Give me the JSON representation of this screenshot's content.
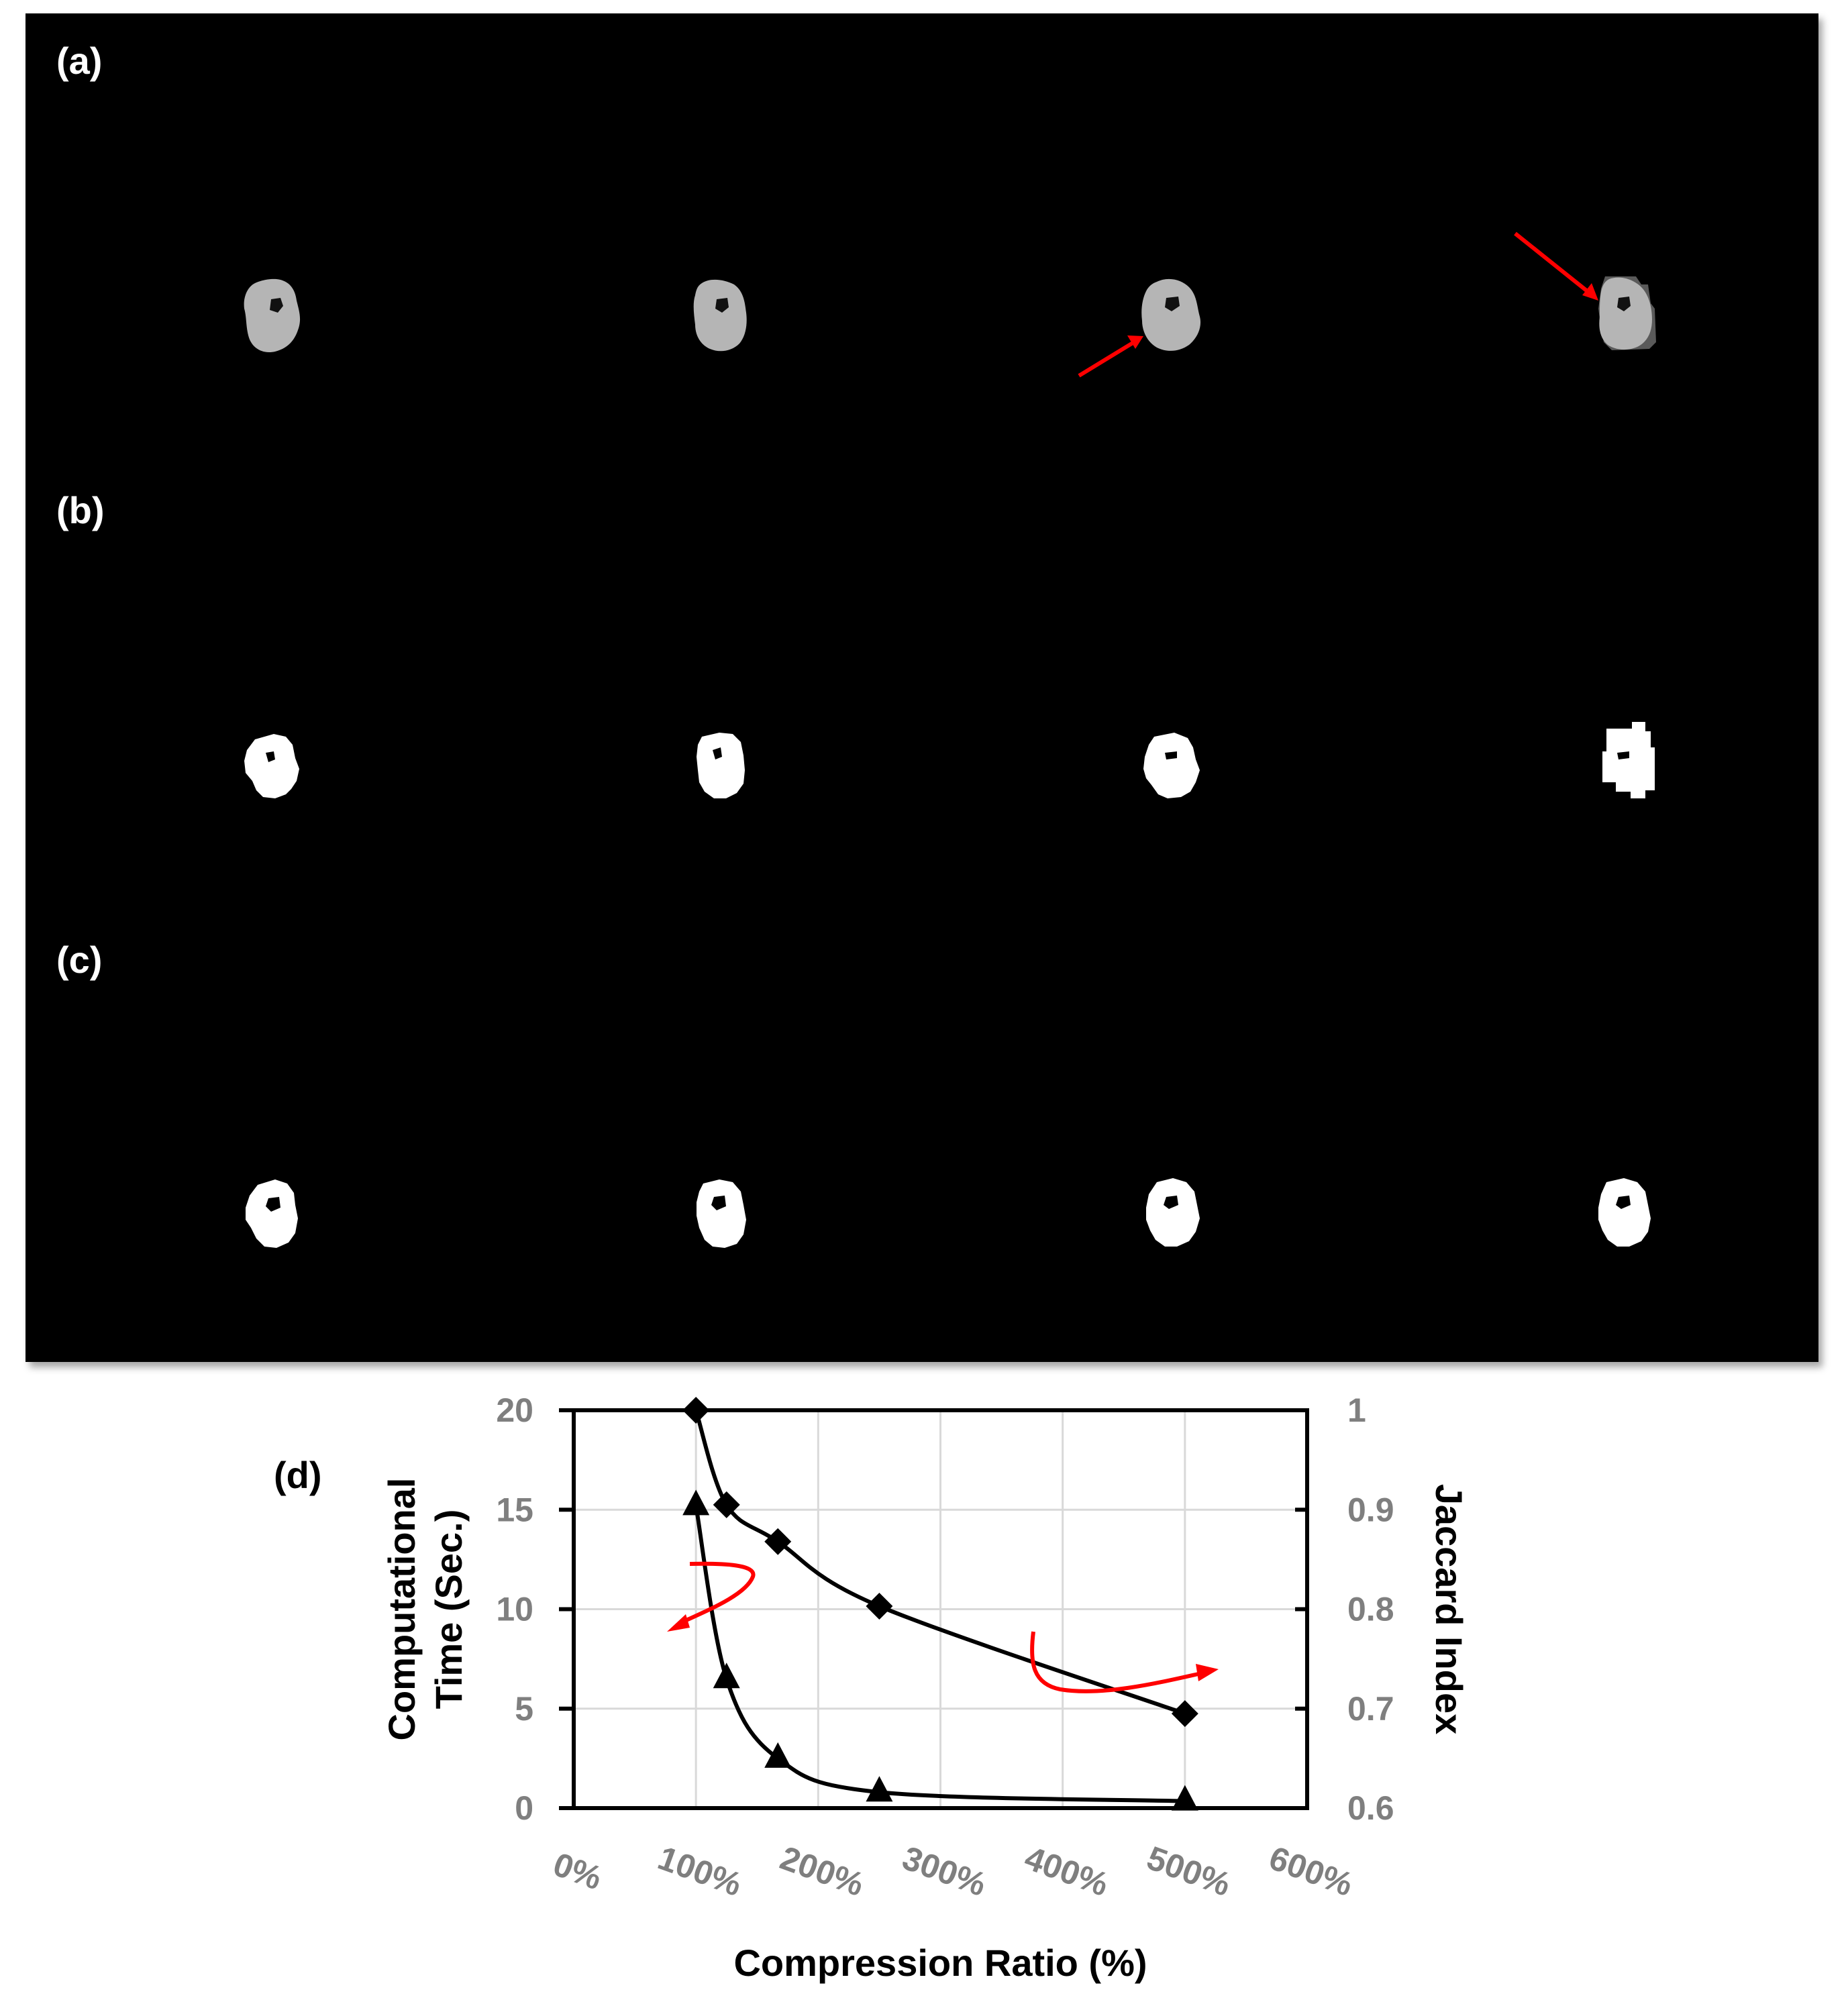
{
  "panels": {
    "labels": [
      "(a)",
      "(b)",
      "(c)"
    ]
  },
  "chart_label": "(d)",
  "chart_data": {
    "type": "line",
    "xlabel": "Compression Ratio (%)",
    "ylabel_left": "Computational Time (Sec.)",
    "ylabel_right": "Jaccard Index",
    "x_ticks": [
      "0%",
      "100%",
      "200%",
      "300%",
      "400%",
      "500%",
      "600%"
    ],
    "y_left_ticks": [
      "0",
      "5",
      "10",
      "15",
      "20"
    ],
    "y_right_ticks": [
      "0.6",
      "0.7",
      "0.8",
      "0.9",
      "1"
    ],
    "xlim": [
      0,
      600
    ],
    "ylim_left": [
      0,
      20
    ],
    "ylim_right": [
      0.6,
      1.0
    ],
    "grid": true,
    "series": [
      {
        "axis": "left",
        "marker": "triangle",
        "x": [
          100,
          125,
          167,
          250,
          500
        ],
        "y": [
          15.2,
          6.5,
          2.5,
          0.8,
          0.35
        ]
      },
      {
        "axis": "right",
        "marker": "diamond",
        "x": [
          100,
          125,
          167,
          250,
          500
        ],
        "y": [
          1.0,
          0.905,
          0.868,
          0.803,
          0.695
        ]
      }
    ],
    "colors": {
      "line": "#000000",
      "annotation": "#ff0000",
      "tick_text": "#7f7f7f"
    }
  }
}
